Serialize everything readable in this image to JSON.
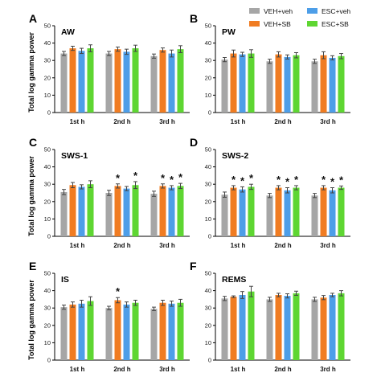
{
  "colors": {
    "veh_veh": "#a6a6a6",
    "veh_sb": "#f07c22",
    "esc_veh": "#4d9ee8",
    "esc_sb": "#5ed632"
  },
  "legend": [
    {
      "label": "VEH+veh",
      "color": "#a6a6a6"
    },
    {
      "label": "ESC+veh",
      "color": "#4d9ee8"
    },
    {
      "label": "VEH+SB",
      "color": "#f07c22"
    },
    {
      "label": "ESC+SB",
      "color": "#5ed632"
    }
  ],
  "ylabel": "Total log gamma power",
  "chart_data": [
    {
      "type": "bar",
      "panel": "A",
      "title": "AW",
      "categories": [
        "1st h",
        "2nd h",
        "3rd h"
      ],
      "ylim": [
        0,
        50
      ],
      "yticks": [
        "0",
        "10",
        "20",
        "30",
        "40",
        "50"
      ],
      "series": [
        {
          "name": "VEH+veh",
          "values": [
            34,
            34,
            32.5
          ],
          "errors": [
            1.2,
            1.2,
            1.2
          ]
        },
        {
          "name": "VEH+SB",
          "values": [
            37,
            36.5,
            36
          ],
          "errors": [
            1.2,
            1.2,
            1.2
          ]
        },
        {
          "name": "ESC+veh",
          "values": [
            35.5,
            35,
            34
          ],
          "errors": [
            1.5,
            1.5,
            2
          ]
        },
        {
          "name": "ESC+SB",
          "values": [
            37,
            37,
            36.5
          ],
          "errors": [
            2,
            1.8,
            2
          ]
        }
      ],
      "stars": []
    },
    {
      "type": "bar",
      "panel": "B",
      "title": "PW",
      "categories": [
        "1st h",
        "2nd h",
        "3rd h"
      ],
      "ylim": [
        0,
        50
      ],
      "yticks": [
        "0",
        "10",
        "20",
        "30",
        "40",
        "50"
      ],
      "series": [
        {
          "name": "VEH+veh",
          "values": [
            30.5,
            29.5,
            29.5
          ],
          "errors": [
            1.2,
            1.2,
            1.2
          ]
        },
        {
          "name": "VEH+SB",
          "values": [
            34,
            33.5,
            33
          ],
          "errors": [
            2,
            1.5,
            2
          ]
        },
        {
          "name": "ESC+veh",
          "values": [
            33.5,
            32,
            31.5
          ],
          "errors": [
            1.2,
            1.2,
            1.2
          ]
        },
        {
          "name": "ESC+SB",
          "values": [
            34,
            33,
            32.5
          ],
          "errors": [
            2.2,
            1.5,
            1.5
          ]
        }
      ],
      "stars": []
    },
    {
      "type": "bar",
      "panel": "C",
      "title": "SWS-1",
      "categories": [
        "1st h",
        "2nd h",
        "3rd h"
      ],
      "ylim": [
        0,
        50
      ],
      "yticks": [
        "0",
        "10",
        "20",
        "30",
        "40",
        "50"
      ],
      "series": [
        {
          "name": "VEH+veh",
          "values": [
            25.5,
            25,
            24.5
          ],
          "errors": [
            1.5,
            1.5,
            1.5
          ]
        },
        {
          "name": "VEH+SB",
          "values": [
            29.5,
            29,
            29
          ],
          "errors": [
            1.5,
            1.2,
            1.2
          ]
        },
        {
          "name": "ESC+veh",
          "values": [
            28.5,
            27.5,
            28
          ],
          "errors": [
            1.2,
            1.2,
            1.2
          ]
        },
        {
          "name": "ESC+SB",
          "values": [
            30,
            29.5,
            29
          ],
          "errors": [
            2,
            2,
            1.5
          ]
        }
      ],
      "stars": [
        [
          1,
          1
        ],
        [
          1,
          3
        ],
        [
          2,
          1
        ],
        [
          2,
          2
        ],
        [
          2,
          3
        ]
      ]
    },
    {
      "type": "bar",
      "panel": "D",
      "title": "SWS-2",
      "categories": [
        "1st h",
        "2nd h",
        "3rd h"
      ],
      "ylim": [
        0,
        50
      ],
      "yticks": [
        "0",
        "10",
        "20",
        "30",
        "40",
        "50"
      ],
      "series": [
        {
          "name": "VEH+veh",
          "values": [
            24,
            23.5,
            23.5
          ],
          "errors": [
            1.5,
            1.2,
            1.2
          ]
        },
        {
          "name": "VEH+SB",
          "values": [
            28,
            28,
            28
          ],
          "errors": [
            1.2,
            1.2,
            1.2
          ]
        },
        {
          "name": "ESC+veh",
          "values": [
            27,
            26.5,
            26.5
          ],
          "errors": [
            1.5,
            1.5,
            1.5
          ]
        },
        {
          "name": "ESC+SB",
          "values": [
            28.5,
            28,
            28
          ],
          "errors": [
            1.5,
            1.2,
            1
          ]
        }
      ],
      "stars": [
        [
          0,
          1
        ],
        [
          0,
          2
        ],
        [
          0,
          3
        ],
        [
          1,
          1
        ],
        [
          1,
          2
        ],
        [
          1,
          3
        ],
        [
          2,
          1
        ],
        [
          2,
          2
        ],
        [
          2,
          3
        ]
      ]
    },
    {
      "type": "bar",
      "panel": "E",
      "title": "IS",
      "categories": [
        "1st h",
        "2nd h",
        "3rd h"
      ],
      "ylim": [
        0,
        50
      ],
      "yticks": [
        "0",
        "10",
        "20",
        "30",
        "40",
        "50"
      ],
      "series": [
        {
          "name": "VEH+veh",
          "values": [
            30.5,
            30,
            29.5
          ],
          "errors": [
            1.2,
            1,
            1
          ]
        },
        {
          "name": "VEH+SB",
          "values": [
            32,
            34.5,
            33
          ],
          "errors": [
            1.5,
            1.5,
            1.5
          ]
        },
        {
          "name": "ESC+veh",
          "values": [
            32.5,
            32,
            32.5
          ],
          "errors": [
            2,
            1.5,
            1.5
          ]
        },
        {
          "name": "ESC+SB",
          "values": [
            34,
            33,
            33
          ],
          "errors": [
            2.5,
            1.5,
            2
          ]
        }
      ],
      "stars": [
        [
          1,
          1
        ]
      ]
    },
    {
      "type": "bar",
      "panel": "F",
      "title": "REMS",
      "categories": [
        "1st h",
        "2nd h",
        "3rd h"
      ],
      "ylim": [
        0,
        50
      ],
      "yticks": [
        "0",
        "10",
        "20",
        "30",
        "40",
        "50"
      ],
      "series": [
        {
          "name": "VEH+veh",
          "values": [
            35.5,
            35,
            35
          ],
          "errors": [
            1.2,
            1.2,
            1.2
          ]
        },
        {
          "name": "VEH+SB",
          "values": [
            36.5,
            37.5,
            36
          ],
          "errors": [
            0.5,
            1,
            1.2
          ]
        },
        {
          "name": "ESC+veh",
          "values": [
            37.5,
            37,
            37.5
          ],
          "errors": [
            2,
            1.2,
            1
          ]
        },
        {
          "name": "ESC+SB",
          "values": [
            39.5,
            38.5,
            38.5
          ],
          "errors": [
            3,
            1.2,
            1.5
          ]
        }
      ],
      "stars": []
    }
  ]
}
